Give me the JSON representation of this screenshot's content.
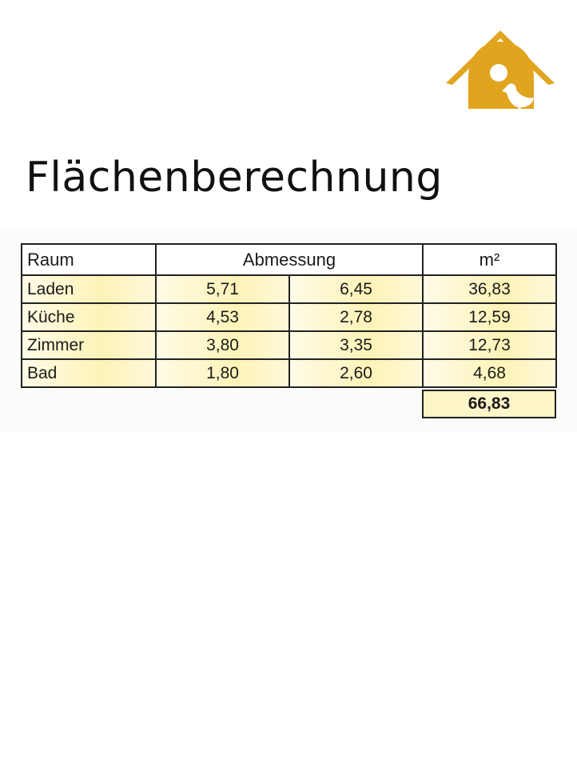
{
  "brand": {
    "logo_icon": "house-with-bird-icon",
    "color": "#e0a41f"
  },
  "title": "Flächenberechnung",
  "table": {
    "headers": [
      "Raum",
      "Abmessung",
      "m²"
    ],
    "rows": [
      {
        "raum": "Laden",
        "a": "5,71",
        "b": "6,45",
        "m2": "36,83"
      },
      {
        "raum": "Küche",
        "a": "4,53",
        "b": "2,78",
        "m2": "12,59"
      },
      {
        "raum": "Zimmer",
        "a": "3,80",
        "b": "3,35",
        "m2": "12,73"
      },
      {
        "raum": "Bad",
        "a": "1,80",
        "b": "2,60",
        "m2": "4,68"
      }
    ],
    "total": "66,83"
  }
}
